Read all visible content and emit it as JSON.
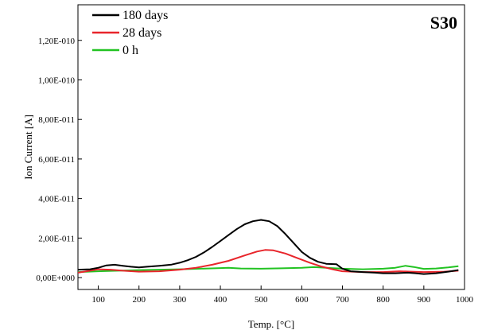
{
  "chart_data": {
    "type": "line",
    "panel_label": "S30",
    "xlabel": "Temp. [°C]",
    "ylabel": "Ion Current [A]",
    "xlim": [
      50,
      1000
    ],
    "ylim": [
      -6e-12,
      1.38e-10
    ],
    "x_ticks": [
      100,
      200,
      300,
      400,
      500,
      600,
      700,
      800,
      900,
      1000
    ],
    "y_ticks": [
      {
        "value": 0,
        "label": "0,00E+000"
      },
      {
        "value": 2e-11,
        "label": "2,00E-011"
      },
      {
        "value": 4e-11,
        "label": "4,00E-011"
      },
      {
        "value": 6e-11,
        "label": "6,00E-011"
      },
      {
        "value": 8e-11,
        "label": "8,00E-011"
      },
      {
        "value": 1e-10,
        "label": "1,00E-010"
      },
      {
        "value": 1.2e-10,
        "label": "1,20E-010"
      }
    ],
    "legend_position": "top-left",
    "grid": false,
    "series": [
      {
        "name": "180 days",
        "color": "#000000",
        "points": [
          [
            50,
            4e-12
          ],
          [
            80,
            4.2e-12
          ],
          [
            100,
            5e-12
          ],
          [
            120,
            6.2e-12
          ],
          [
            140,
            6.5e-12
          ],
          [
            160,
            6e-12
          ],
          [
            180,
            5.5e-12
          ],
          [
            200,
            5.2e-12
          ],
          [
            220,
            5.5e-12
          ],
          [
            250,
            6e-12
          ],
          [
            280,
            6.6e-12
          ],
          [
            300,
            7.5e-12
          ],
          [
            320,
            8.8e-12
          ],
          [
            340,
            1.05e-11
          ],
          [
            360,
            1.28e-11
          ],
          [
            380,
            1.55e-11
          ],
          [
            400,
            1.85e-11
          ],
          [
            420,
            2.15e-11
          ],
          [
            440,
            2.45e-11
          ],
          [
            460,
            2.7e-11
          ],
          [
            480,
            2.85e-11
          ],
          [
            500,
            2.92e-11
          ],
          [
            520,
            2.85e-11
          ],
          [
            540,
            2.6e-11
          ],
          [
            560,
            2.2e-11
          ],
          [
            580,
            1.75e-11
          ],
          [
            600,
            1.3e-11
          ],
          [
            620,
            1e-11
          ],
          [
            640,
            8e-12
          ],
          [
            660,
            7e-12
          ],
          [
            685,
            6.8e-12
          ],
          [
            700,
            4.5e-12
          ],
          [
            720,
            3.2e-12
          ],
          [
            750,
            2.8e-12
          ],
          [
            780,
            2.5e-12
          ],
          [
            800,
            2.2e-12
          ],
          [
            830,
            2.2e-12
          ],
          [
            860,
            2.5e-12
          ],
          [
            880,
            2.2e-12
          ],
          [
            900,
            1.8e-12
          ],
          [
            930,
            2.2e-12
          ],
          [
            960,
            3e-12
          ],
          [
            985,
            3.8e-12
          ]
        ]
      },
      {
        "name": "28 days",
        "color": "#e8252b",
        "points": [
          [
            50,
            2.5e-12
          ],
          [
            80,
            3.5e-12
          ],
          [
            100,
            4.2e-12
          ],
          [
            130,
            4e-12
          ],
          [
            160,
            3.5e-12
          ],
          [
            200,
            3e-12
          ],
          [
            250,
            3.2e-12
          ],
          [
            300,
            4e-12
          ],
          [
            340,
            5e-12
          ],
          [
            380,
            6.5e-12
          ],
          [
            420,
            8.5e-12
          ],
          [
            460,
            1.12e-11
          ],
          [
            490,
            1.32e-11
          ],
          [
            510,
            1.4e-11
          ],
          [
            530,
            1.38e-11
          ],
          [
            560,
            1.22e-11
          ],
          [
            590,
            9.8e-12
          ],
          [
            620,
            7.5e-12
          ],
          [
            650,
            5.5e-12
          ],
          [
            680,
            4e-12
          ],
          [
            700,
            3.2e-12
          ],
          [
            750,
            2.8e-12
          ],
          [
            800,
            2.8e-12
          ],
          [
            840,
            3.2e-12
          ],
          [
            870,
            3e-12
          ],
          [
            900,
            2.8e-12
          ],
          [
            950,
            3e-12
          ],
          [
            985,
            3.5e-12
          ]
        ]
      },
      {
        "name": "0 h",
        "color": "#22c322",
        "points": [
          [
            50,
            2.8e-12
          ],
          [
            100,
            3.2e-12
          ],
          [
            150,
            3.5e-12
          ],
          [
            200,
            3.8e-12
          ],
          [
            250,
            4e-12
          ],
          [
            300,
            4.2e-12
          ],
          [
            350,
            4.5e-12
          ],
          [
            400,
            4.8e-12
          ],
          [
            420,
            5e-12
          ],
          [
            450,
            4.6e-12
          ],
          [
            500,
            4.5e-12
          ],
          [
            550,
            4.7e-12
          ],
          [
            600,
            5e-12
          ],
          [
            630,
            5.3e-12
          ],
          [
            660,
            5e-12
          ],
          [
            700,
            4.5e-12
          ],
          [
            750,
            4.2e-12
          ],
          [
            800,
            4.5e-12
          ],
          [
            830,
            5e-12
          ],
          [
            855,
            6e-12
          ],
          [
            875,
            5.4e-12
          ],
          [
            900,
            4.4e-12
          ],
          [
            930,
            4.6e-12
          ],
          [
            960,
            5.2e-12
          ],
          [
            985,
            5.8e-12
          ]
        ]
      }
    ]
  }
}
